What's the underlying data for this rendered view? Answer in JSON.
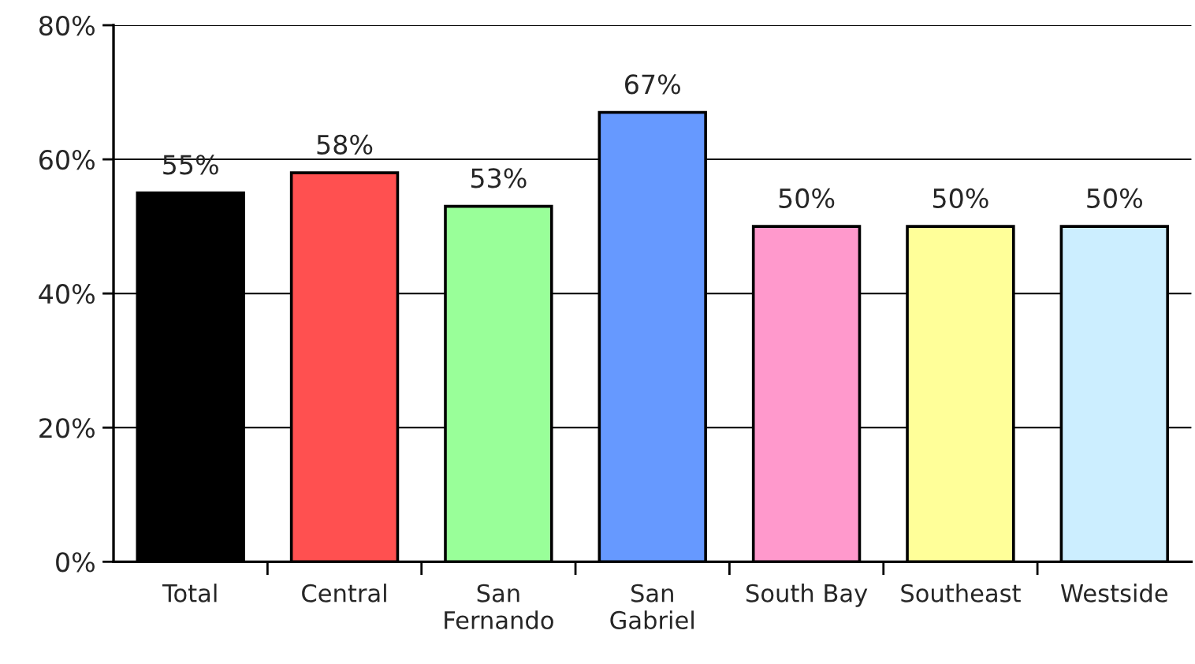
{
  "chart_data": {
    "type": "bar",
    "categories": [
      "Total",
      "Central",
      "San Fernando",
      "San Gabriel",
      "South Bay",
      "Southeast",
      "Westside"
    ],
    "values": [
      55,
      58,
      53,
      67,
      50,
      50,
      50
    ],
    "value_labels": [
      "55%",
      "58%",
      "53%",
      "67%",
      "50%",
      "50%",
      "50%"
    ],
    "colors": [
      "#000000",
      "#ff5050",
      "#99ff99",
      "#6699ff",
      "#ff99cc",
      "#ffff99",
      "#cceeff"
    ],
    "ylim": [
      0,
      80
    ],
    "yticks": [
      {
        "value": 0,
        "label": "0%"
      },
      {
        "value": 20,
        "label": "20%"
      },
      {
        "value": 40,
        "label": "40%"
      },
      {
        "value": 60,
        "label": "60%"
      },
      {
        "value": 80,
        "label": "80%"
      }
    ],
    "grid": "y"
  }
}
